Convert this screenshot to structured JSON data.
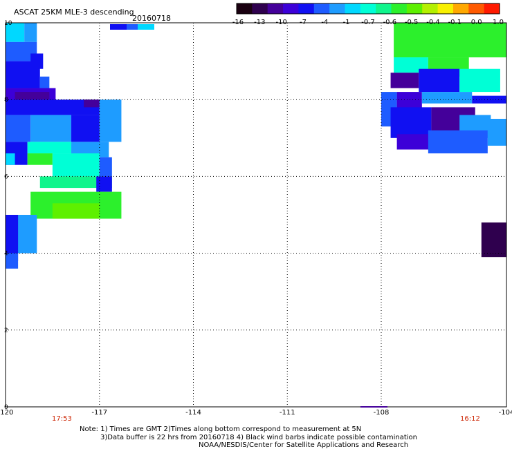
{
  "header": {
    "title": "ASCAT 25KM MLE-3 descending",
    "date": "20160718"
  },
  "colorbar": {
    "labels": [
      "-16",
      "-13",
      "-10",
      "-7",
      "-4",
      "-1",
      "-0.7",
      "-0.6",
      "-0.5",
      "-0.4",
      "-0.1",
      "0.0",
      "1.0"
    ],
    "colors": [
      "#1a0010",
      "#2f004e",
      "#44009a",
      "#3c00d8",
      "#1010f2",
      "#1e5cff",
      "#1e9cff",
      "#00d8ff",
      "#00ffd6",
      "#10f58c",
      "#2cf02c",
      "#5ef000",
      "#b4f000",
      "#f8f000",
      "#ffa800",
      "#ff5a00",
      "#ff1a00"
    ]
  },
  "time_labels": {
    "left": "17:53",
    "right": "16:12",
    "color": "#cc2200"
  },
  "footer": {
    "line1": "Note: 1) Times are GMT 2)Times along bottom correspond to measurement at 5N",
    "line2": "3)Data buffer is 22 hrs from 20160718 4) Black wind barbs indicate possible contamination",
    "line3": "NOAA/NESDIS/Center for Satellite Applications and Research"
  },
  "chart_data": {
    "type": "heatmap",
    "title": "ASCAT 25KM MLE-3 descending",
    "xlabel": "",
    "ylabel": "",
    "xlim": [
      -120,
      -104
    ],
    "ylim": [
      0,
      10
    ],
    "x_ticks": [
      "-120",
      "-117",
      "-114",
      "-111",
      "-108",
      "-104"
    ],
    "x_tick_values": [
      -120,
      -117,
      -114,
      -111,
      -108,
      -104
    ],
    "y_ticks": [
      "0",
      "2",
      "4",
      "6",
      "8",
      "10"
    ],
    "y_tick_values": [
      0,
      2,
      4,
      6,
      8,
      10
    ],
    "grid": true,
    "legend": "colorbar top-right",
    "regions": [
      {
        "lon": [
          -120,
          -119.4
        ],
        "lat": [
          9.5,
          10
        ],
        "color": "#00d8ff"
      },
      {
        "lon": [
          -119.4,
          -119.0
        ],
        "lat": [
          9.5,
          10
        ],
        "color": "#1e9cff"
      },
      {
        "lon": [
          -120,
          -119.0
        ],
        "lat": [
          9.0,
          9.5
        ],
        "color": "#1e5cff"
      },
      {
        "lon": [
          -119.2,
          -118.8
        ],
        "lat": [
          8.8,
          9.2
        ],
        "color": "#1010f2"
      },
      {
        "lon": [
          -120,
          -118.9
        ],
        "lat": [
          8.3,
          9.0
        ],
        "color": "#1010f2"
      },
      {
        "lon": [
          -118.9,
          -118.6
        ],
        "lat": [
          8.0,
          8.6
        ],
        "color": "#1e5cff"
      },
      {
        "lon": [
          -120,
          -118.4
        ],
        "lat": [
          7.9,
          8.3
        ],
        "color": "#3c00d8"
      },
      {
        "lon": [
          -119.7,
          -118.6
        ],
        "lat": [
          8.0,
          8.2
        ],
        "color": "#44009a"
      },
      {
        "lon": [
          -120,
          -117.0
        ],
        "lat": [
          7.6,
          8.0
        ],
        "color": "#1010f2"
      },
      {
        "lon": [
          -117.5,
          -117.0
        ],
        "lat": [
          7.8,
          8.0
        ],
        "color": "#44009a"
      },
      {
        "lon": [
          -117.0,
          -116.3
        ],
        "lat": [
          6.9,
          8.0
        ],
        "color": "#1e9cff"
      },
      {
        "lon": [
          -120,
          -119.2
        ],
        "lat": [
          6.9,
          7.6
        ],
        "color": "#1e5cff"
      },
      {
        "lon": [
          -119.2,
          -117.9
        ],
        "lat": [
          6.9,
          7.6
        ],
        "color": "#1e9cff"
      },
      {
        "lon": [
          -117.9,
          -117.0
        ],
        "lat": [
          6.9,
          7.6
        ],
        "color": "#1010f2"
      },
      {
        "lon": [
          -120,
          -119.3
        ],
        "lat": [
          6.3,
          6.9
        ],
        "color": "#1010f2"
      },
      {
        "lon": [
          -120,
          -119.7
        ],
        "lat": [
          6.3,
          6.6
        ],
        "color": "#00d8ff"
      },
      {
        "lon": [
          -119.3,
          -117.9
        ],
        "lat": [
          6.6,
          6.9
        ],
        "color": "#00ffd6"
      },
      {
        "lon": [
          -117.9,
          -116.7
        ],
        "lat": [
          6.5,
          6.9
        ],
        "color": "#1e9cff"
      },
      {
        "lon": [
          -119.3,
          -118.5
        ],
        "lat": [
          6.3,
          6.6
        ],
        "color": "#2cf02c"
      },
      {
        "lon": [
          -118.5,
          -117.0
        ],
        "lat": [
          6.0,
          6.6
        ],
        "color": "#00ffd6"
      },
      {
        "lon": [
          -117.0,
          -116.6
        ],
        "lat": [
          6.0,
          6.5
        ],
        "color": "#1e5cff"
      },
      {
        "lon": [
          -118.9,
          -116.6
        ],
        "lat": [
          5.7,
          6.0
        ],
        "color": "#10f58c"
      },
      {
        "lon": [
          -117.1,
          -116.6
        ],
        "lat": [
          5.6,
          6.0
        ],
        "color": "#1010f2"
      },
      {
        "lon": [
          -119.2,
          -116.3
        ],
        "lat": [
          4.9,
          5.6
        ],
        "color": "#2cf02c"
      },
      {
        "lon": [
          -118.5,
          -117.0
        ],
        "lat": [
          4.9,
          5.3
        ],
        "color": "#5ef000"
      },
      {
        "lon": [
          -120,
          -119.0
        ],
        "lat": [
          4.0,
          5.0
        ],
        "color": "#1e9cff"
      },
      {
        "lon": [
          -120,
          -119.6
        ],
        "lat": [
          3.8,
          5.0
        ],
        "color": "#1010f2"
      },
      {
        "lon": [
          -120,
          -119.6
        ],
        "lat": [
          3.6,
          4.0
        ],
        "color": "#1e5cff"
      },
      {
        "lon": [
          -107.6,
          -104
        ],
        "lat": [
          9.1,
          10
        ],
        "color": "#2cf02c"
      },
      {
        "lon": [
          -107.6,
          -106.5
        ],
        "lat": [
          8.7,
          9.1
        ],
        "color": "#00ffd6"
      },
      {
        "lon": [
          -106.5,
          -105.2
        ],
        "lat": [
          8.6,
          9.1
        ],
        "color": "#2cf02c"
      },
      {
        "lon": [
          -107.7,
          -106.8
        ],
        "lat": [
          8.3,
          8.7
        ],
        "color": "#44009a"
      },
      {
        "lon": [
          -106.8,
          -105.5
        ],
        "lat": [
          8.2,
          8.8
        ],
        "color": "#1010f2"
      },
      {
        "lon": [
          -105.5,
          -104.2
        ],
        "lat": [
          8.2,
          8.8
        ],
        "color": "#00ffd6"
      },
      {
        "lon": [
          -108.0,
          -107.5
        ],
        "lat": [
          7.3,
          8.2
        ],
        "color": "#1e5cff"
      },
      {
        "lon": [
          -107.5,
          -106.7
        ],
        "lat": [
          7.7,
          8.2
        ],
        "color": "#3c00d8"
      },
      {
        "lon": [
          -106.7,
          -105.1
        ],
        "lat": [
          7.9,
          8.2
        ],
        "color": "#1e9cff"
      },
      {
        "lon": [
          -105.1,
          -104
        ],
        "lat": [
          7.9,
          8.1
        ],
        "color": "#1010f2"
      },
      {
        "lon": [
          -107.7,
          -106.4
        ],
        "lat": [
          7.0,
          7.8
        ],
        "color": "#1010f2"
      },
      {
        "lon": [
          -106.4,
          -105.0
        ],
        "lat": [
          7.0,
          7.8
        ],
        "color": "#44009a"
      },
      {
        "lon": [
          -105.5,
          -104.5
        ],
        "lat": [
          7.0,
          7.6
        ],
        "color": "#1e9cff"
      },
      {
        "lon": [
          -107.5,
          -105.3
        ],
        "lat": [
          6.7,
          7.1
        ],
        "color": "#3c00d8"
      },
      {
        "lon": [
          -106.5,
          -104.6
        ],
        "lat": [
          6.6,
          7.2
        ],
        "color": "#1e5cff"
      },
      {
        "lon": [
          -104.6,
          -104
        ],
        "lat": [
          6.8,
          7.5
        ],
        "color": "#1e9cff"
      },
      {
        "lon": [
          -104.8,
          -104
        ],
        "lat": [
          3.9,
          4.8
        ],
        "color": "#2f004e"
      }
    ]
  }
}
